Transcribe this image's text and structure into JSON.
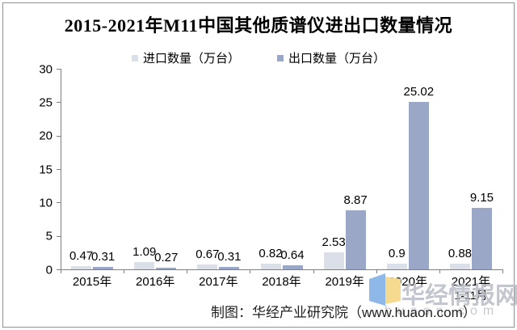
{
  "title": "2015-2021年M11中国其他质谱仪进出口数量情况",
  "chart_data": {
    "type": "bar",
    "categories": [
      "2015年",
      "2016年",
      "2017年",
      "2018年",
      "2019年",
      "2020年",
      "2021年"
    ],
    "x_sublabels": [
      "",
      "",
      "",
      "",
      "",
      "",
      "1-11月"
    ],
    "series": [
      {
        "name": "进口数量（万台）",
        "color": "#dbdfe8",
        "values": [
          0.47,
          1.09,
          0.67,
          0.82,
          2.53,
          0.9,
          0.88
        ]
      },
      {
        "name": "出口数量（万台）",
        "color": "#9ba7c6",
        "values": [
          0.31,
          0.27,
          0.31,
          0.64,
          8.87,
          25.02,
          9.15
        ]
      }
    ],
    "ylim": [
      0,
      30
    ],
    "yticks": [
      0,
      5,
      10,
      15,
      20,
      25,
      30
    ],
    "grid": false,
    "legend_position": "top"
  },
  "footer": {
    "credit": "制图：华经产业研究院（www.huaon.com）"
  },
  "watermark": {
    "brand_text": "华经情报网",
    "brand_domain": "huaon.com"
  },
  "colors": {
    "import_bar": "#dbdfe8",
    "export_bar": "#9ba7c6",
    "axis": "#7f7f7f",
    "watermark_gray": "#b9bdc6",
    "logo_blue": "#8db8e8",
    "logo_yellow": "#f5da8f"
  }
}
